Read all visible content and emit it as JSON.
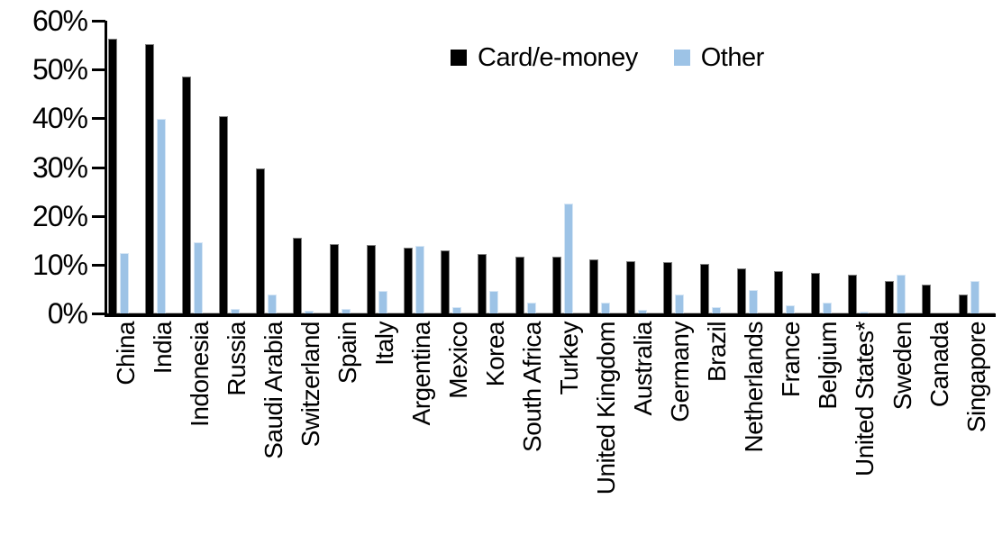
{
  "chart_data": {
    "type": "bar",
    "title": "",
    "xlabel": "",
    "ylabel": "",
    "ylim": [
      0,
      60
    ],
    "ytick_values": [
      60,
      50,
      40,
      30,
      20,
      10,
      0
    ],
    "ytick_labels": [
      "60%",
      "50%",
      "40%",
      "30%",
      "20%",
      "10%",
      "0%"
    ],
    "grid": false,
    "legend_position": "top-center",
    "categories": [
      "China",
      "India",
      "Indonesia",
      "Russia",
      "Saudi Arabia",
      "Switzerland",
      "Spain",
      "Italy",
      "Argentina",
      "Mexico",
      "Korea",
      "South Africa",
      "Turkey",
      "United Kingdom",
      "Australia",
      "Germany",
      "Brazil",
      "Netherlands",
      "France",
      "Belgium",
      "United States*",
      "Sweden",
      "Canada",
      "Singapore"
    ],
    "series": [
      {
        "name": "Card/e-money",
        "color": "#000000",
        "values": [
          56.4,
          55.2,
          48.6,
          40.5,
          29.8,
          15.6,
          14.2,
          14.1,
          13.4,
          13.0,
          12.2,
          11.7,
          11.6,
          11.0,
          10.8,
          10.6,
          10.1,
          9.3,
          8.7,
          8.3,
          7.9,
          6.6,
          5.9,
          3.8
        ]
      },
      {
        "name": "Other",
        "color": "#9DC3E6",
        "values": [
          12.3,
          39.8,
          14.5,
          0.9,
          3.8,
          0.6,
          0.9,
          4.6,
          13.9,
          1.3,
          4.6,
          2.3,
          22.6,
          2.3,
          0.8,
          3.9,
          1.3,
          4.8,
          1.7,
          2.2,
          0.3,
          7.9,
          0.0,
          6.6
        ]
      }
    ]
  },
  "legend": {
    "card_label": "Card/e-money",
    "other_label": "Other"
  }
}
